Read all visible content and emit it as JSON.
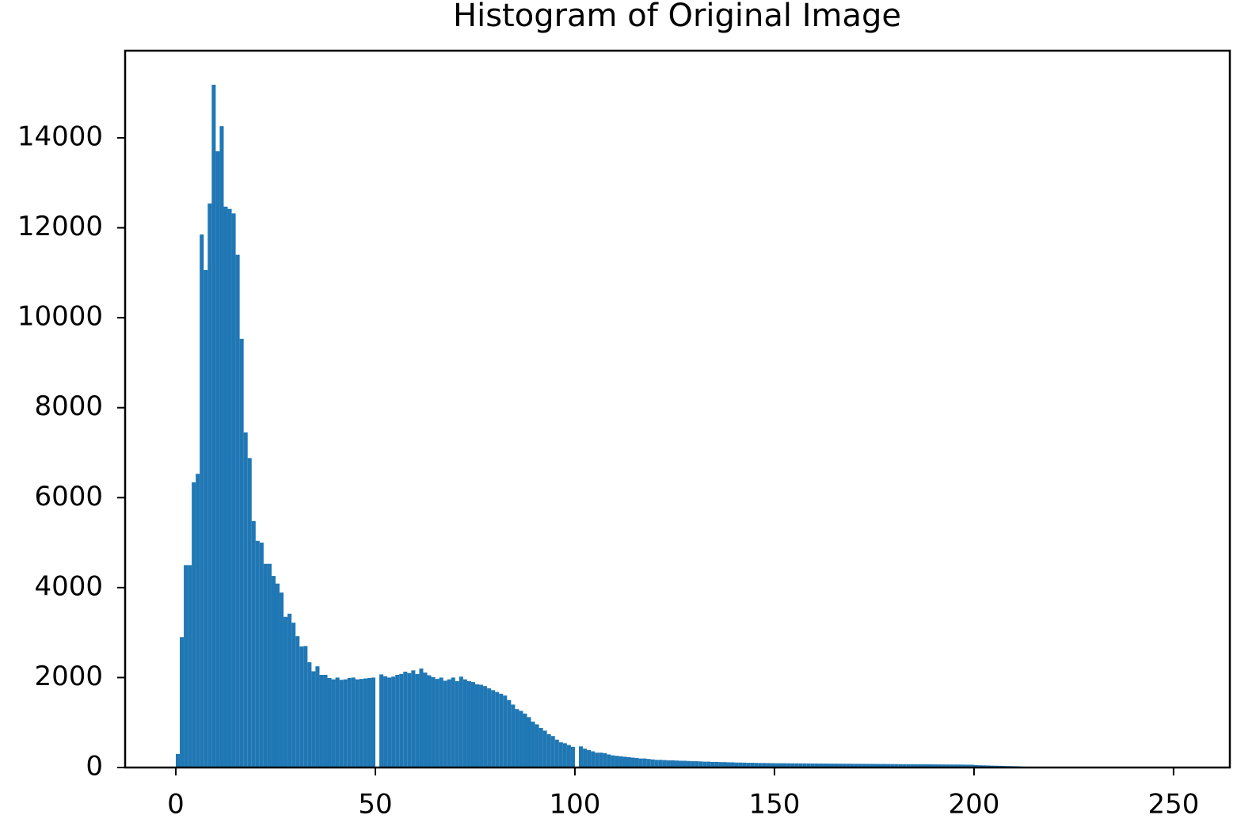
{
  "chart_data": {
    "type": "histogram",
    "title": "Histogram of Original Image",
    "color": "#1f77b4",
    "bins": [
      0,
      1,
      2,
      3,
      4,
      5,
      6,
      7,
      8,
      9,
      10,
      11,
      12,
      13,
      14,
      15,
      16,
      17,
      18,
      19,
      20,
      21,
      22,
      23,
      24,
      25,
      26,
      27,
      28,
      29,
      30,
      31,
      32,
      33,
      34,
      35,
      36,
      37,
      38,
      39,
      40,
      41,
      42,
      43,
      44,
      45,
      46,
      47,
      48,
      49,
      50,
      51,
      52,
      53,
      54,
      55,
      56,
      57,
      58,
      59,
      60,
      61,
      62,
      63,
      64,
      65,
      66,
      67,
      68,
      69,
      70,
      71,
      72,
      73,
      74,
      75,
      76,
      77,
      78,
      79,
      80,
      81,
      82,
      83,
      84,
      85,
      86,
      87,
      88,
      89,
      90,
      91,
      92,
      93,
      94,
      95,
      96,
      97,
      98,
      99,
      100,
      101,
      102,
      103,
      104,
      105,
      106,
      107,
      108,
      109,
      110,
      111,
      112,
      113,
      114,
      115,
      116,
      117,
      118,
      119,
      120,
      121,
      122,
      123,
      124,
      125,
      126,
      127,
      128,
      129,
      130,
      131,
      132,
      133,
      134,
      135,
      136,
      137,
      138,
      139,
      140,
      141,
      142,
      143,
      144,
      145,
      146,
      147,
      148,
      149,
      150,
      151,
      152,
      153,
      154,
      155,
      156,
      157,
      158,
      159,
      160,
      161,
      162,
      163,
      164,
      165,
      166,
      167,
      168,
      169,
      170,
      171,
      172,
      173,
      174,
      175,
      176,
      177,
      178,
      179,
      180,
      181,
      182,
      183,
      184,
      185,
      186,
      187,
      188,
      189,
      190,
      191,
      192,
      193,
      194,
      195,
      196,
      197,
      198,
      199,
      200,
      201,
      202,
      203,
      204,
      205,
      206,
      207,
      208,
      209,
      210,
      211,
      212,
      213,
      214,
      215,
      216,
      217,
      218,
      219,
      220,
      221,
      222,
      223,
      224,
      225,
      226,
      227,
      228,
      229,
      230,
      231,
      232,
      233,
      234,
      235,
      236,
      237,
      238,
      239,
      240,
      241,
      242,
      243,
      244,
      245,
      246,
      247,
      248,
      249,
      250,
      251,
      252,
      253,
      254,
      255,
      256
    ],
    "values": [
      300,
      2900,
      4500,
      4500,
      6340,
      6530,
      11850,
      11060,
      12540,
      15180,
      13700,
      14260,
      12470,
      12420,
      12320,
      11400,
      9530,
      7450,
      6880,
      5480,
      5040,
      5000,
      4530,
      4530,
      4260,
      4090,
      3890,
      3350,
      3420,
      3220,
      2920,
      2690,
      2700,
      2340,
      2140,
      2250,
      2060,
      2060,
      1990,
      1960,
      2000,
      1950,
      1960,
      1990,
      2000,
      1960,
      1970,
      1980,
      1990,
      2000,
      0,
      2070,
      2030,
      2000,
      2020,
      2060,
      2080,
      2130,
      2100,
      2160,
      2080,
      2200,
      2110,
      2050,
      2010,
      1970,
      2000,
      1930,
      1960,
      2000,
      1920,
      2020,
      1960,
      1920,
      1900,
      1850,
      1840,
      1810,
      1760,
      1720,
      1680,
      1640,
      1600,
      1500,
      1400,
      1300,
      1260,
      1200,
      1120,
      1020,
      960,
      880,
      820,
      740,
      700,
      620,
      560,
      540,
      500,
      460,
      0,
      470,
      420,
      390,
      360,
      330,
      330,
      320,
      290,
      270,
      260,
      250,
      240,
      230,
      220,
      210,
      200,
      200,
      190,
      180,
      170,
      170,
      165,
      160,
      160,
      155,
      150,
      150,
      145,
      140,
      140,
      135,
      130,
      130,
      125,
      125,
      120,
      120,
      115,
      115,
      110,
      110,
      108,
      105,
      105,
      102,
      100,
      100,
      98,
      96,
      95,
      95,
      95,
      94,
      93,
      92,
      92,
      91,
      90,
      90,
      89,
      88,
      88,
      87,
      86,
      86,
      85,
      84,
      84,
      83,
      82,
      82,
      81,
      80,
      80,
      79,
      78,
      78,
      77,
      76,
      76,
      75,
      74,
      74,
      73,
      72,
      72,
      71,
      70,
      70,
      69,
      68,
      68,
      67,
      66,
      66,
      65,
      64,
      63,
      62,
      55,
      50,
      48,
      45,
      42,
      40,
      38,
      35,
      32,
      30,
      28,
      25,
      20,
      0,
      0,
      0,
      0,
      0,
      0,
      0,
      0,
      0,
      0,
      0,
      0,
      0,
      0,
      0,
      0,
      0,
      0,
      0,
      0,
      0,
      0,
      0,
      0,
      0,
      0,
      0,
      0,
      0,
      0,
      0,
      0,
      0,
      0,
      0,
      0,
      0,
      0,
      0,
      0,
      0,
      0,
      0
    ],
    "xlim": [
      -12.7,
      264.1
    ],
    "xticks": [
      0,
      50,
      100,
      150,
      200,
      250
    ],
    "ylim": [
      0,
      15937
    ],
    "yticks": [
      0,
      2000,
      4000,
      6000,
      8000,
      10000,
      12000,
      14000
    ]
  }
}
